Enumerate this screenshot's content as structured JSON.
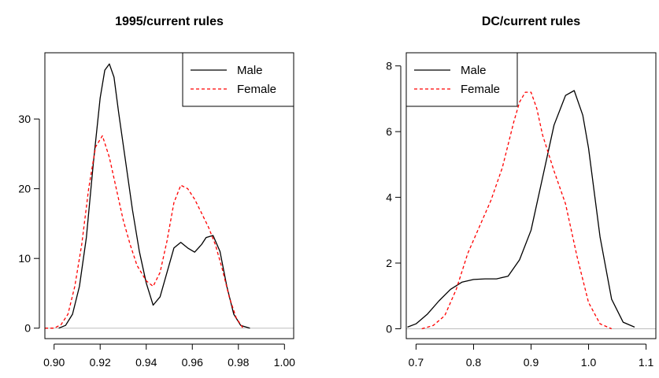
{
  "chart_data": [
    {
      "type": "line",
      "title": "1995/current rules",
      "xlabel": "",
      "ylabel": "",
      "xlim": [
        0.896,
        1.004
      ],
      "ylim": [
        -1.5,
        39.5
      ],
      "xticks": [
        0.9,
        0.92,
        0.94,
        0.96,
        0.98,
        1.0
      ],
      "xtick_labels": [
        "0.90",
        "0.92",
        "0.94",
        "0.96",
        "0.98",
        "1.00"
      ],
      "yticks": [
        0,
        10,
        20,
        30
      ],
      "ytick_labels": [
        "0",
        "10",
        "20",
        "30"
      ],
      "grid": false,
      "legend_position": "top-right",
      "series": [
        {
          "name": "Male",
          "color": "#000000",
          "dash": "solid",
          "x": [
            0.902,
            0.905,
            0.908,
            0.911,
            0.914,
            0.917,
            0.92,
            0.922,
            0.924,
            0.926,
            0.928,
            0.931,
            0.934,
            0.937,
            0.94,
            0.943,
            0.946,
            0.949,
            0.952,
            0.955,
            0.958,
            0.961,
            0.964,
            0.966,
            0.969,
            0.972,
            0.975,
            0.978,
            0.981,
            0.985
          ],
          "y": [
            0.0,
            0.4,
            2.0,
            6.0,
            13.0,
            23.5,
            33.0,
            37.0,
            37.9,
            36.0,
            31.0,
            24.0,
            17.0,
            11.0,
            6.5,
            3.3,
            4.5,
            8.0,
            11.5,
            12.3,
            11.5,
            10.9,
            12.0,
            13.0,
            13.3,
            11.0,
            6.0,
            2.0,
            0.4,
            0.0
          ]
        },
        {
          "name": "Female",
          "color": "#ff0000",
          "dash": "dashed",
          "x": [
            0.896,
            0.9,
            0.903,
            0.906,
            0.909,
            0.912,
            0.915,
            0.918,
            0.921,
            0.924,
            0.927,
            0.93,
            0.933,
            0.936,
            0.94,
            0.943,
            0.946,
            0.949,
            0.952,
            0.955,
            0.958,
            0.961,
            0.964,
            0.967,
            0.97,
            0.973,
            0.976,
            0.979,
            0.982
          ],
          "y": [
            0.0,
            0.0,
            0.5,
            2.0,
            6.0,
            12.0,
            20.0,
            26.0,
            27.6,
            24.5,
            20.0,
            15.5,
            12.0,
            9.0,
            6.8,
            6.0,
            8.0,
            12.5,
            18.0,
            20.5,
            20.0,
            18.5,
            16.5,
            14.5,
            12.0,
            8.5,
            4.5,
            1.5,
            0.0
          ]
        }
      ]
    },
    {
      "type": "line",
      "title": "DC/current rules",
      "xlabel": "",
      "ylabel": "",
      "xlim": [
        0.683,
        1.117
      ],
      "ylim": [
        -0.3,
        8.4
      ],
      "xticks": [
        0.7,
        0.8,
        0.9,
        1.0,
        1.1
      ],
      "xtick_labels": [
        "0.7",
        "0.8",
        "0.9",
        "1.0",
        "1.1"
      ],
      "yticks": [
        0,
        2,
        4,
        6,
        8
      ],
      "ytick_labels": [
        "0",
        "2",
        "4",
        "6",
        "8"
      ],
      "grid": false,
      "legend_position": "top-left",
      "series": [
        {
          "name": "Male",
          "color": "#000000",
          "dash": "solid",
          "x": [
            0.685,
            0.7,
            0.72,
            0.74,
            0.76,
            0.78,
            0.8,
            0.82,
            0.84,
            0.86,
            0.88,
            0.9,
            0.92,
            0.94,
            0.96,
            0.975,
            0.99,
            1.0,
            1.02,
            1.04,
            1.06,
            1.08
          ],
          "y": [
            0.05,
            0.15,
            0.45,
            0.85,
            1.2,
            1.42,
            1.5,
            1.52,
            1.52,
            1.6,
            2.1,
            3.0,
            4.6,
            6.2,
            7.1,
            7.25,
            6.5,
            5.5,
            2.8,
            0.9,
            0.2,
            0.05
          ]
        },
        {
          "name": "Female",
          "color": "#ff0000",
          "dash": "dashed",
          "x": [
            0.71,
            0.73,
            0.75,
            0.77,
            0.79,
            0.81,
            0.83,
            0.85,
            0.87,
            0.88,
            0.89,
            0.9,
            0.91,
            0.92,
            0.94,
            0.96,
            0.98,
            1.0,
            1.02,
            1.04
          ],
          "y": [
            0.0,
            0.1,
            0.4,
            1.2,
            2.3,
            3.1,
            3.9,
            4.9,
            6.3,
            6.9,
            7.2,
            7.2,
            6.7,
            5.9,
            4.8,
            3.8,
            2.2,
            0.8,
            0.15,
            0.0
          ]
        }
      ]
    }
  ]
}
